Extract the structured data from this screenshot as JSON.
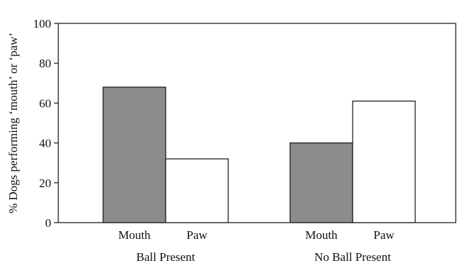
{
  "chart_data": {
    "type": "bar",
    "title": "",
    "ylabel": "% Dogs performing ‘mouth’ or ‘paw’",
    "xlabel": "",
    "ylim": [
      0,
      100
    ],
    "yticks": [
      0,
      20,
      40,
      60,
      80,
      100
    ],
    "grid": false,
    "groups": [
      {
        "label": "Ball Present",
        "bars": [
          {
            "label": "Mouth",
            "value": 68,
            "color": "#8c8c8c"
          },
          {
            "label": "Paw",
            "value": 32,
            "color": "#ffffff"
          }
        ]
      },
      {
        "label": "No Ball Present",
        "bars": [
          {
            "label": "Mouth",
            "value": 40,
            "color": "#8c8c8c"
          },
          {
            "label": "Paw",
            "value": 61,
            "color": "#ffffff"
          }
        ]
      }
    ]
  }
}
